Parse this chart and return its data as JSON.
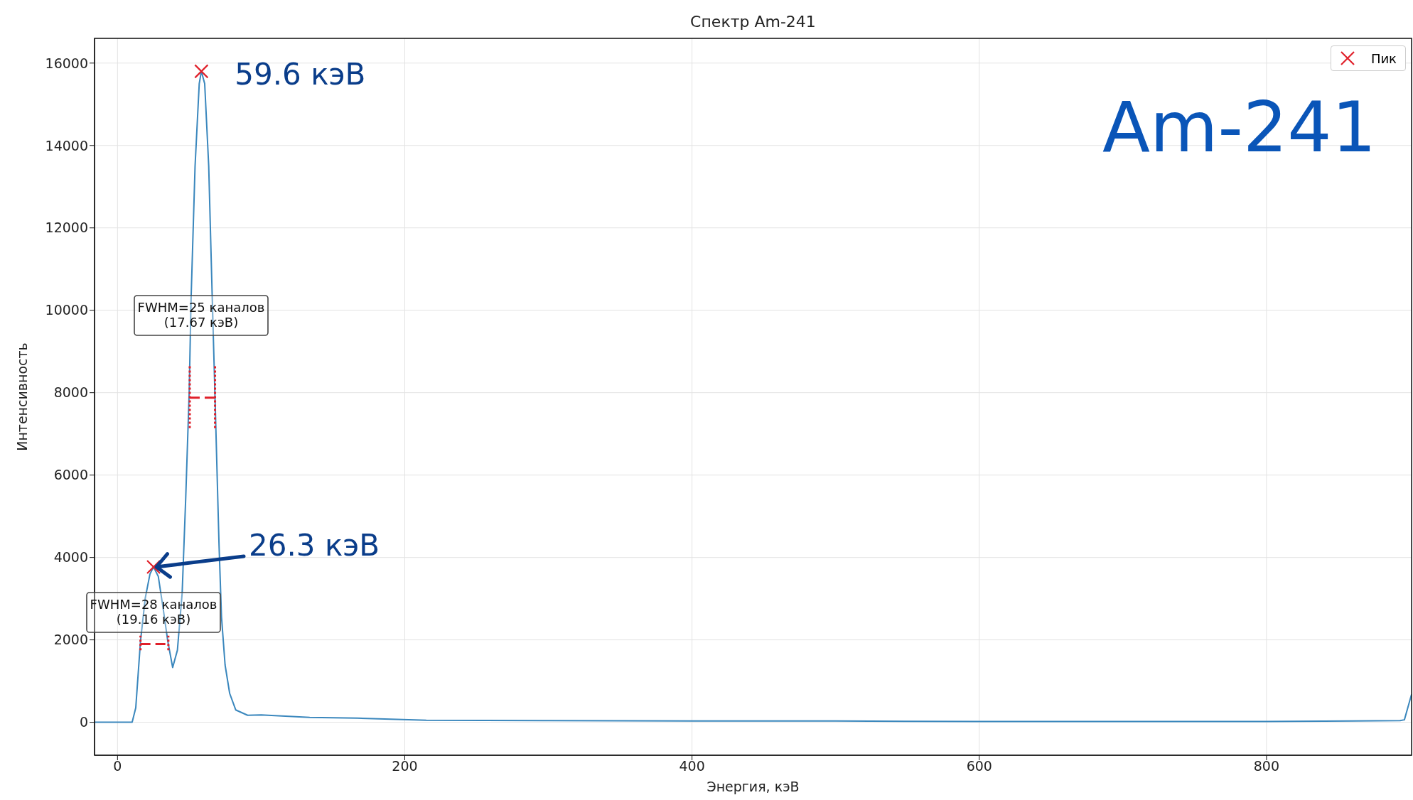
{
  "chart_data": {
    "type": "line",
    "title": "Спектр Am-241",
    "xlabel": "Энергия, кэВ",
    "ylabel": "Интенсивность",
    "xlim": [
      -16,
      901
    ],
    "xticks": [
      0,
      200,
      400,
      600,
      800
    ],
    "ylim": [
      -800,
      16600
    ],
    "yticks": [
      0,
      2000,
      4000,
      6000,
      8000,
      10000,
      12000,
      14000,
      16000
    ],
    "grid": true,
    "legend": "top right",
    "series": [
      {
        "color": "#3a87bd",
        "marker": "none",
        "x": [
          -16,
          0,
          10.2,
          12.7,
          16,
          19.3,
          22.6,
          25.1,
          28.4,
          31.7,
          35,
          38.4,
          41.7,
          45,
          47.5,
          49.9,
          51.2,
          54,
          56.9,
          58.4,
          60.7,
          63.5,
          66,
          67.8,
          70.7,
          72.4,
          74.9,
          78.1,
          82.3,
          90.6,
          100,
          133.8,
          167,
          215,
          300,
          400,
          500,
          600,
          700,
          800,
          860,
          893,
          896,
          901
        ],
        "values": [
          0,
          0,
          0,
          350,
          1970,
          3010,
          3600,
          3770,
          3540,
          2780,
          1970,
          1330,
          1750,
          3130,
          5450,
          8000,
          10250,
          13500,
          15500,
          15800,
          15500,
          13500,
          10250,
          8000,
          4290,
          2560,
          1390,
          700,
          300,
          170,
          180,
          120,
          100,
          50,
          40,
          30,
          30,
          20,
          20,
          20,
          30,
          40,
          60,
          680
        ]
      },
      {
        "type": "scatter",
        "name": "Пик",
        "color": "#e0202a",
        "marker": "cross",
        "x": [
          25.1,
          58.4
        ],
        "values": [
          3770,
          15800
        ]
      },
      {
        "type": "line",
        "color": "#e0202a",
        "line_style": "dashed",
        "marker": "none",
        "x": [
          16,
          35.4
        ],
        "values": [
          1900,
          1900
        ]
      },
      {
        "type": "line",
        "color": "#e0202a",
        "line_style": "dotted",
        "marker": "none",
        "x": [
          16,
          16
        ],
        "values": [
          1750,
          2100
        ]
      },
      {
        "type": "line",
        "color": "#e0202a",
        "line_style": "dotted",
        "marker": "none",
        "x": [
          35.4,
          35.4
        ],
        "values": [
          1750,
          2100
        ]
      },
      {
        "type": "line",
        "color": "#e0202a",
        "line_style": "dashed",
        "marker": "none",
        "x": [
          50.3,
          67.9
        ],
        "values": [
          7880,
          7880
        ]
      },
      {
        "type": "line",
        "color": "#e0202a",
        "line_style": "dotted",
        "marker": "none",
        "x": [
          50.3,
          50.3
        ],
        "values": [
          7140,
          8660
        ]
      },
      {
        "type": "line",
        "color": "#e0202a",
        "line_style": "dotted",
        "marker": "none",
        "x": [
          67.9,
          67.9
        ],
        "values": [
          7140,
          8660
        ]
      }
    ],
    "annotations": [
      {
        "text": "59.6 кэВ",
        "x": 58.4,
        "y": 15800
      },
      {
        "text": "26.3 кэВ",
        "x": 25.1,
        "y": 3770
      },
      "FWHM=25 каналов\n(17.67 кэВ)",
      "FWHM=28 каналов\n(19.16 кэВ)",
      "Am-241"
    ]
  }
}
